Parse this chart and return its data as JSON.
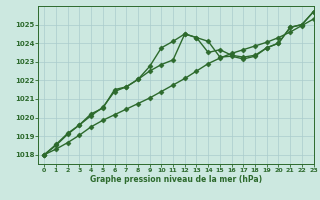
{
  "x": [
    0,
    1,
    2,
    3,
    4,
    5,
    6,
    7,
    8,
    9,
    10,
    11,
    12,
    13,
    14,
    15,
    16,
    17,
    18,
    19,
    20,
    21,
    22,
    23
  ],
  "line1": [
    1018.0,
    1018.3,
    1018.65,
    1019.05,
    1019.5,
    1019.85,
    1020.15,
    1020.45,
    1020.75,
    1021.05,
    1021.4,
    1021.75,
    1022.1,
    1022.5,
    1022.9,
    1023.2,
    1023.45,
    1023.65,
    1023.85,
    1024.05,
    1024.3,
    1024.6,
    1024.95,
    1025.3
  ],
  "line2": [
    1018.0,
    1018.5,
    1019.1,
    1019.6,
    1020.1,
    1020.55,
    1021.4,
    1021.65,
    1022.05,
    1022.75,
    1023.75,
    1024.1,
    1024.5,
    1024.3,
    1024.1,
    1023.25,
    1023.3,
    1023.15,
    1023.3,
    1023.75,
    1024.0,
    1024.85,
    1025.0,
    1025.7
  ],
  "line3": [
    1018.0,
    1018.55,
    1019.15,
    1019.6,
    1020.2,
    1020.5,
    1021.5,
    1021.65,
    1022.05,
    1022.5,
    1022.85,
    1023.1,
    1024.5,
    1024.3,
    1023.5,
    1023.65,
    1023.35,
    1023.25,
    1023.35,
    1023.75,
    1024.0,
    1024.85,
    1025.0,
    1025.7
  ],
  "line_color": "#2d6a2d",
  "bg_color": "#cce8e0",
  "grid_color": "#aacccc",
  "xlabel": "Graphe pression niveau de la mer (hPa)",
  "ylim": [
    1017.5,
    1026.0
  ],
  "xlim": [
    -0.5,
    23
  ],
  "yticks": [
    1018,
    1019,
    1020,
    1021,
    1022,
    1023,
    1024,
    1025
  ],
  "xticks": [
    0,
    1,
    2,
    3,
    4,
    5,
    6,
    7,
    8,
    9,
    10,
    11,
    12,
    13,
    14,
    15,
    16,
    17,
    18,
    19,
    20,
    21,
    22,
    23
  ],
  "marker": "D",
  "markersize": 2.5,
  "linewidth": 1.0
}
